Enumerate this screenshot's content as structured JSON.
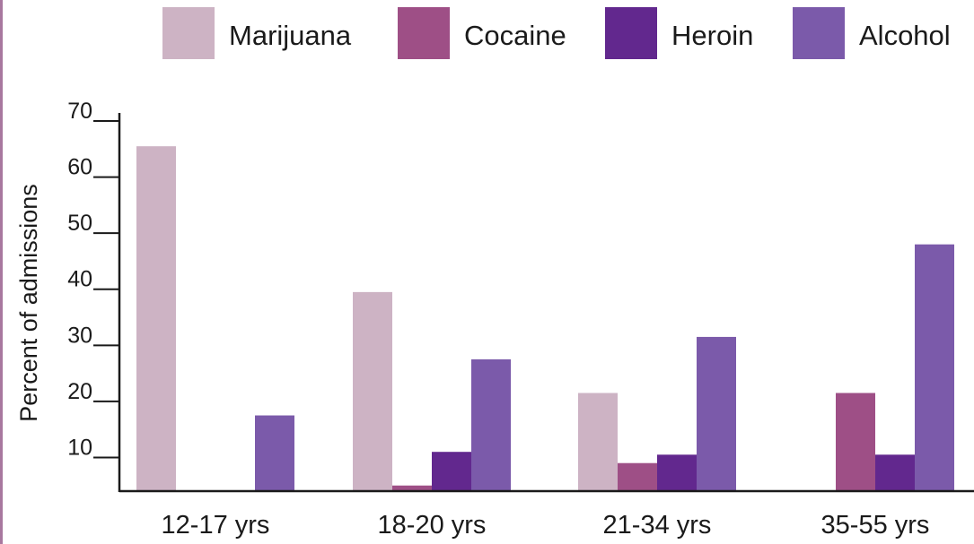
{
  "chart_data": {
    "type": "bar",
    "title": "",
    "xlabel": "",
    "ylabel": "Percent of admissions",
    "categories": [
      "12-17 yrs",
      "18-20 yrs",
      "21-34 yrs",
      "35-55 yrs"
    ],
    "series": [
      {
        "name": "Marijuana",
        "color": "#cdb3c4",
        "values": [
          65.5,
          39.5,
          21.5,
          3
        ]
      },
      {
        "name": "Cocaine",
        "color": "#9e4f86",
        "values": [
          3.5,
          5,
          9,
          21.5
        ]
      },
      {
        "name": "Heroin",
        "color": "#62288e",
        "values": [
          2,
          11,
          10.5,
          10.5
        ]
      },
      {
        "name": "Alcohol",
        "color": "#7b5aaa",
        "values": [
          17.5,
          27.5,
          31.5,
          48
        ]
      }
    ],
    "yticks": [
      10,
      20,
      30,
      40,
      50,
      60,
      70
    ],
    "ylim": [
      4,
      74
    ],
    "grid": false,
    "legend_position": "top"
  }
}
